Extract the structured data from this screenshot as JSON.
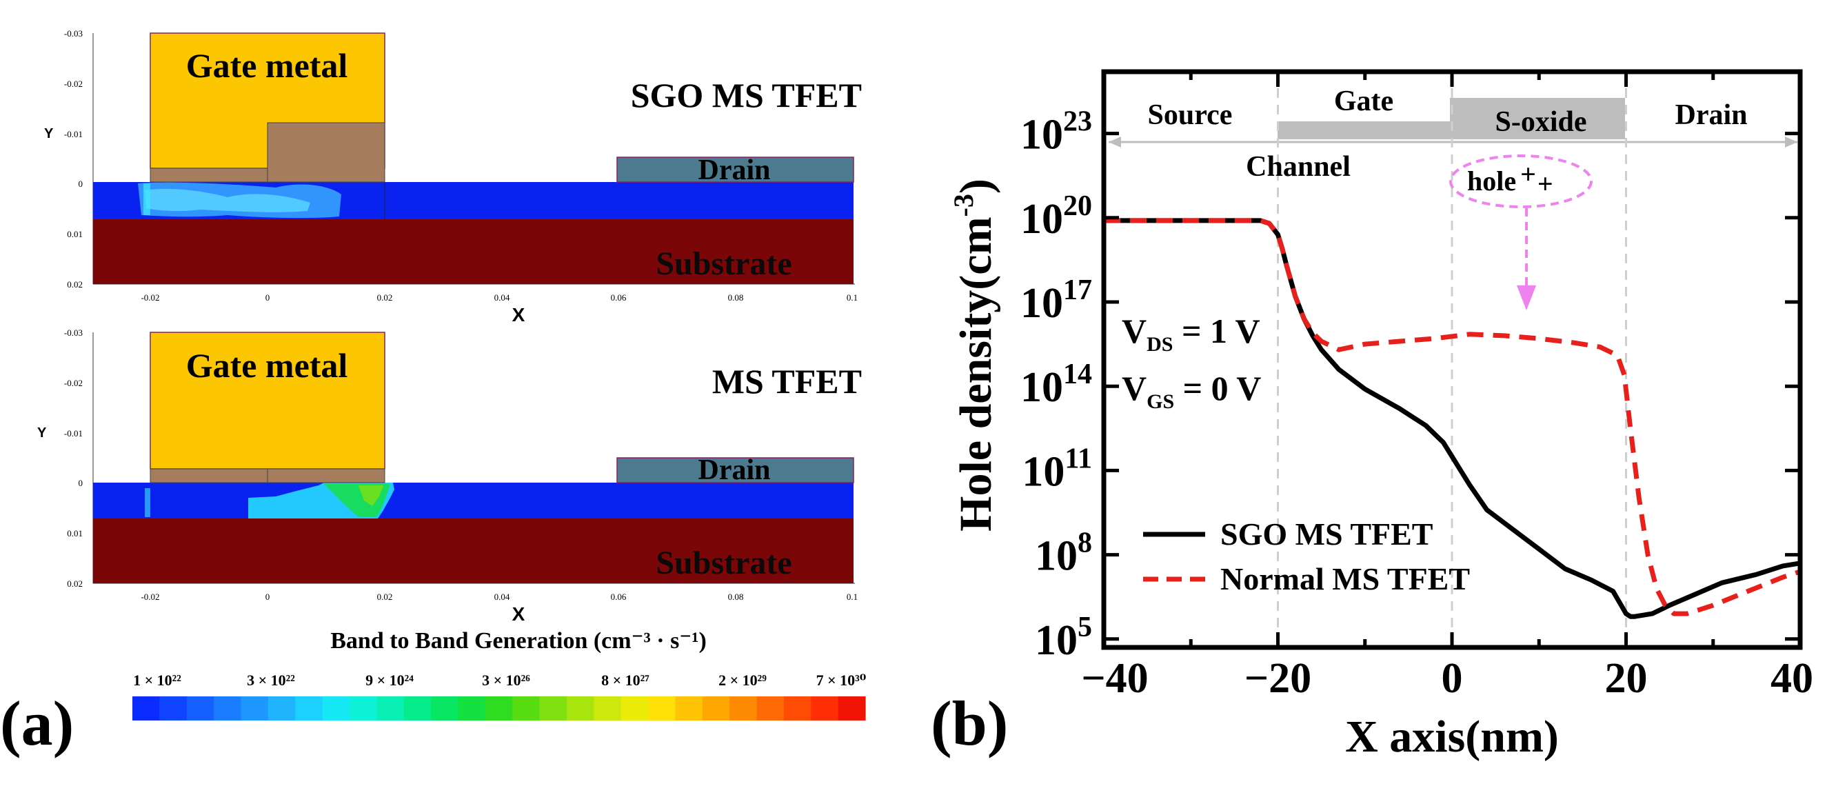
{
  "panel_a": {
    "label": "(a)",
    "colorbar": {
      "title": "Band to Band Generation (cm⁻³ · s⁻¹)",
      "ticks": [
        "1 × 10²²",
        "3 × 10²²",
        "9 × 10²⁴",
        "3 × 10²⁶",
        "8 × 10²⁷",
        "2 × 10²⁹",
        "7 × 10³⁰"
      ],
      "colors": [
        "#0a2cff",
        "#1044ff",
        "#1560ff",
        "#1a7cff",
        "#1e98ff",
        "#20b4ff",
        "#1cd0ff",
        "#16e8f6",
        "#10f2d8",
        "#0af0b4",
        "#06ec8c",
        "#08e664",
        "#14e040",
        "#30dc20",
        "#58dc12",
        "#80e010",
        "#a8e40e",
        "#cce80c",
        "#ecec0a",
        "#ffe008",
        "#ffc406",
        "#ffa804",
        "#ff8a04",
        "#ff6a04",
        "#ff4c04",
        "#ff2e04",
        "#f01404"
      ]
    },
    "plots": [
      {
        "device_title": "SGO MS TFET",
        "gate_label": "Gate metal",
        "drain_label": "Drain",
        "substrate_label": "Substrate",
        "ylabel": "Y",
        "xlabel": "X",
        "yticks": [
          "-0.03",
          "-0.02",
          "-0.01",
          "0",
          "0.01",
          "0.02"
        ],
        "xticks": [
          "-0.02",
          "0",
          "0.02",
          "0.04",
          "0.06",
          "0.08",
          "0.1"
        ]
      },
      {
        "device_title": "MS TFET",
        "gate_label": "Gate metal",
        "drain_label": "Drain",
        "substrate_label": "Substrate",
        "ylabel": "Y",
        "xlabel": "X",
        "yticks": [
          "-0.03",
          "-0.02",
          "-0.01",
          "0",
          "0.01",
          "0.02"
        ],
        "xticks": [
          "-0.02",
          "0",
          "0.02",
          "0.04",
          "0.06",
          "0.08",
          "0.1"
        ]
      }
    ]
  },
  "panel_b": {
    "label": "(b)",
    "regions": [
      "Source",
      "Gate",
      "S-oxide",
      "Drain"
    ],
    "channel_label": "Channel",
    "hole_label": "hole",
    "bias_labels": [
      {
        "main": "V",
        "sub": "DS",
        "rest": " = 1 V"
      },
      {
        "main": "V",
        "sub": "GS",
        "rest": " = 0 V"
      }
    ]
  },
  "chart_data": {
    "type": "line",
    "title": "",
    "xlabel": "X axis(nm)",
    "ylabel": "Hole density(cm",
    "ylabel_sup": "-3",
    "ylabel_close": ")",
    "xlim": [
      -40,
      40
    ],
    "ylim_log10": [
      4.7,
      25.2
    ],
    "xticks": [
      "−40",
      "−20",
      "0",
      "20",
      "40"
    ],
    "xtick_values": [
      -40,
      -20,
      0,
      20,
      40
    ],
    "yticks": [
      {
        "base": "10",
        "exp": "5",
        "log": 5
      },
      {
        "base": "10",
        "exp": "8",
        "log": 8
      },
      {
        "base": "10",
        "exp": "11",
        "log": 11
      },
      {
        "base": "10",
        "exp": "14",
        "log": 14
      },
      {
        "base": "10",
        "exp": "17",
        "log": 17
      },
      {
        "base": "10",
        "exp": "20",
        "log": 20
      },
      {
        "base": "10",
        "exp": "23",
        "log": 23
      }
    ],
    "boundaries": [
      -20,
      0,
      20
    ],
    "series": [
      {
        "name": "SGO MS TFET",
        "color": "#000000",
        "style": "solid",
        "x": [
          -40,
          -30,
          -22,
          -21,
          -20,
          -19.5,
          -19,
          -18,
          -17,
          -16,
          -15,
          -13,
          -10,
          -6,
          -3,
          -1,
          0,
          2,
          4,
          7,
          10,
          13,
          16,
          18.5,
          20,
          20.5,
          21,
          23,
          25,
          28,
          31,
          35,
          38,
          40
        ],
        "log10y": [
          19.9,
          19.9,
          19.9,
          19.8,
          19.4,
          18.9,
          18.3,
          17.2,
          16.4,
          15.8,
          15.3,
          14.6,
          13.9,
          13.2,
          12.6,
          12.0,
          11.5,
          10.5,
          9.6,
          8.9,
          8.2,
          7.5,
          7.1,
          6.7,
          5.9,
          5.8,
          5.8,
          5.9,
          6.2,
          6.6,
          7.0,
          7.3,
          7.6,
          7.7
        ]
      },
      {
        "name": "Normal MS TFET",
        "color": "#e8201c",
        "style": "dashed",
        "x": [
          -40,
          -30,
          -22,
          -21,
          -20,
          -19.5,
          -19,
          -18,
          -17,
          -16,
          -15,
          -13,
          -10,
          -6,
          -2,
          2,
          6,
          10,
          14,
          17,
          19,
          19.8,
          20.5,
          21.5,
          22.5,
          23.5,
          24.5,
          25.5,
          27,
          30,
          34,
          38,
          40
        ],
        "log10y": [
          19.9,
          19.9,
          19.9,
          19.8,
          19.4,
          18.9,
          18.3,
          17.2,
          16.4,
          15.9,
          15.6,
          15.3,
          15.5,
          15.6,
          15.7,
          15.85,
          15.8,
          15.7,
          15.55,
          15.4,
          15.1,
          14.4,
          12.5,
          10.0,
          8.0,
          6.8,
          6.2,
          5.9,
          5.9,
          6.2,
          6.7,
          7.2,
          7.4
        ]
      }
    ]
  }
}
